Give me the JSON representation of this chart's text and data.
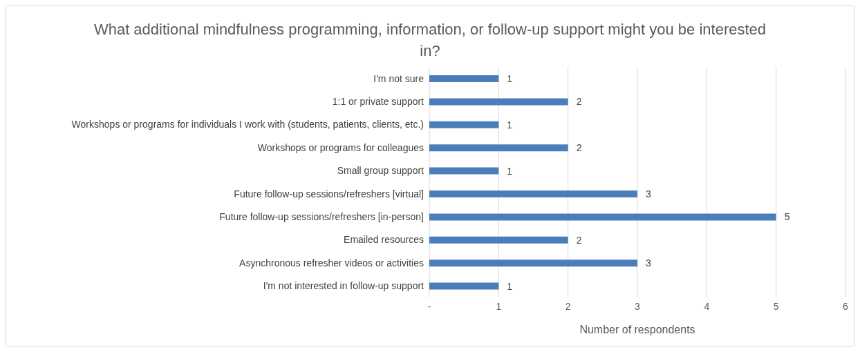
{
  "chart_data": {
    "type": "bar",
    "orientation": "horizontal",
    "title": "What additional mindfulness programming, information, or follow-up support might you be interested in?",
    "categories": [
      "I'm not sure",
      "1:1 or private support",
      "Workshops or programs for individuals I work with (students, patients, clients, etc.)",
      "Workshops or programs for colleagues",
      "Small group support",
      "Future follow-up sessions/refreshers [virtual]",
      "Future follow-up sessions/refreshers [in-person]",
      "Emailed resources",
      "Asynchronous refresher videos or activities",
      "I'm not interested in follow-up support"
    ],
    "values": [
      1,
      2,
      1,
      2,
      1,
      3,
      5,
      2,
      3,
      1
    ],
    "color": "#4a7ebb",
    "xlabel": "Number of respondents",
    "xlim": [
      0,
      6
    ],
    "xticks": [
      {
        "value": 0,
        "label": "-"
      },
      1,
      2,
      3,
      4,
      5,
      6
    ],
    "grid": "x",
    "data_labels": true,
    "legend": false
  }
}
